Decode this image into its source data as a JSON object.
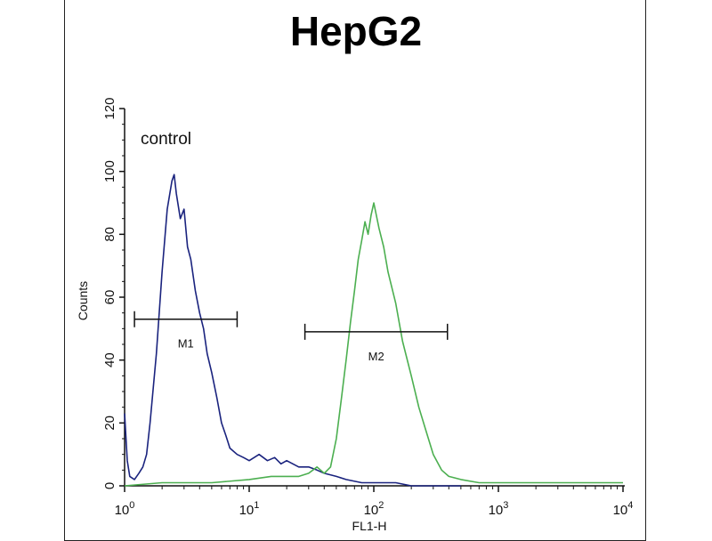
{
  "chart_data": {
    "type": "line",
    "title": "HepG2",
    "xlabel": "FL1-H",
    "ylabel": "Counts",
    "x_scale": "log",
    "xlim": [
      1,
      10000
    ],
    "ylim": [
      0,
      120
    ],
    "x_ticks": [
      {
        "value": 1,
        "base": "10",
        "exp": "0"
      },
      {
        "value": 10,
        "base": "10",
        "exp": "1"
      },
      {
        "value": 100,
        "base": "10",
        "exp": "2"
      },
      {
        "value": 1000,
        "base": "10",
        "exp": "3"
      },
      {
        "value": 10000,
        "base": "10",
        "exp": "4"
      }
    ],
    "y_ticks": [
      0,
      20,
      40,
      60,
      80,
      100,
      120
    ],
    "annotation": "control",
    "series": [
      {
        "color": "#1a237e",
        "x": [
          1.0,
          1.05,
          1.1,
          1.2,
          1.3,
          1.4,
          1.5,
          1.6,
          1.8,
          2.0,
          2.2,
          2.4,
          2.5,
          2.6,
          2.8,
          3.0,
          3.2,
          3.4,
          3.7,
          4.0,
          4.3,
          4.6,
          5.0,
          5.5,
          6.0,
          6.5,
          7.0,
          8.0,
          9.0,
          10,
          12,
          14,
          16,
          18,
          20,
          25,
          30,
          35,
          40,
          50,
          60,
          80,
          100,
          150,
          200,
          300,
          500
        ],
        "values": [
          23,
          8,
          3,
          2,
          4,
          6,
          10,
          20,
          42,
          68,
          88,
          97,
          99,
          93,
          85,
          88,
          76,
          72,
          62,
          55,
          50,
          42,
          36,
          28,
          20,
          16,
          12,
          10,
          9,
          8,
          10,
          8,
          9,
          7,
          8,
          6,
          6,
          5,
          4,
          3,
          2,
          1,
          1,
          1,
          0,
          0,
          0
        ]
      },
      {
        "color": "#4caf50",
        "x": [
          1,
          2,
          5,
          10,
          15,
          20,
          25,
          30,
          35,
          40,
          45,
          50,
          55,
          60,
          65,
          70,
          75,
          80,
          85,
          90,
          95,
          100,
          110,
          120,
          130,
          150,
          170,
          200,
          230,
          260,
          300,
          350,
          400,
          500,
          700,
          1000,
          2000,
          5000,
          10000
        ],
        "values": [
          0,
          1,
          1,
          2,
          3,
          3,
          3,
          4,
          6,
          4,
          6,
          15,
          28,
          40,
          52,
          62,
          72,
          78,
          84,
          80,
          86,
          90,
          82,
          76,
          68,
          58,
          46,
          35,
          25,
          18,
          10,
          5,
          3,
          2,
          1,
          1,
          1,
          1,
          1
        ]
      }
    ],
    "markers": [
      {
        "label": "M1",
        "x_from": 1.2,
        "x_to": 8,
        "y": 53
      },
      {
        "label": "M2",
        "x_from": 28,
        "x_to": 390,
        "y": 49
      }
    ],
    "grid": false
  }
}
